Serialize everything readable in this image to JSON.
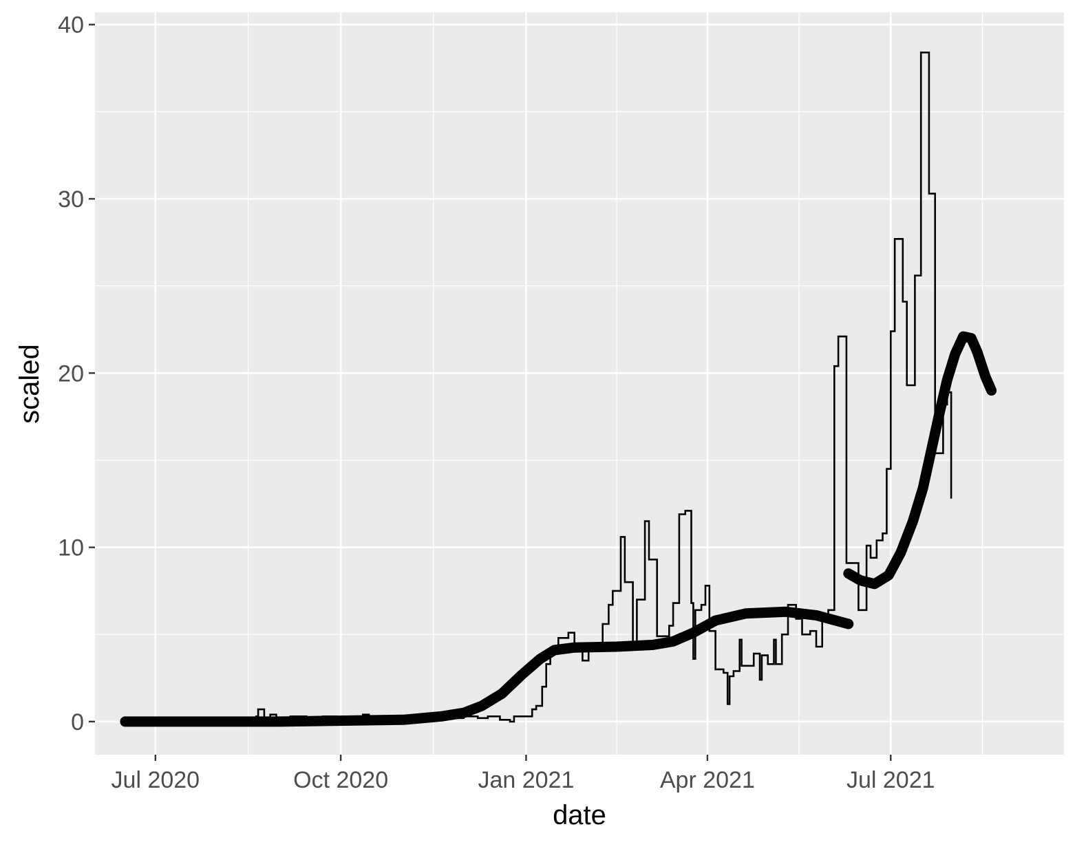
{
  "chart_data": {
    "type": "line",
    "title": "",
    "xlabel": "date",
    "ylabel": "scaled",
    "xlim": [
      "2020-06-01",
      "2021-09-25"
    ],
    "ylim": [
      -1.9,
      40.7
    ],
    "x_ticks": [
      "2020-07-01",
      "2020-10-01",
      "2021-01-01",
      "2021-04-01",
      "2021-07-01"
    ],
    "x_tick_labels": [
      "Jul 2020",
      "Oct 2020",
      "Jan 2021",
      "Apr 2021",
      "Jul 2021"
    ],
    "y_ticks": [
      0,
      10,
      20,
      30,
      40
    ],
    "y_tick_labels": [
      "0",
      "10",
      "20",
      "30",
      "40"
    ],
    "grid": true,
    "background": "#ebebeb",
    "grid_color": "#ffffff",
    "line_color": "#000000",
    "series": [
      {
        "style": "step-line",
        "points": [
          [
            "2020-06-16",
            0
          ],
          [
            "2020-08-15",
            0
          ],
          [
            "2020-08-20",
            0.3
          ],
          [
            "2020-08-21",
            0.7
          ],
          [
            "2020-08-24",
            0.2
          ],
          [
            "2020-08-27",
            0.4
          ],
          [
            "2020-08-30",
            0.1
          ],
          [
            "2020-09-06",
            0.3
          ],
          [
            "2020-09-14",
            0.2
          ],
          [
            "2020-09-22",
            0.3
          ],
          [
            "2020-09-29",
            0.1
          ],
          [
            "2020-10-12",
            0.4
          ],
          [
            "2020-10-15",
            0.1
          ],
          [
            "2020-10-28",
            0.2
          ],
          [
            "2020-11-10",
            0.2
          ],
          [
            "2020-11-18",
            0.5
          ],
          [
            "2020-11-24",
            0.2
          ],
          [
            "2020-12-01",
            0.3
          ],
          [
            "2020-12-08",
            0.2
          ],
          [
            "2020-12-13",
            0.3
          ],
          [
            "2020-12-19",
            0.1
          ],
          [
            "2020-12-24",
            0.0
          ],
          [
            "2020-12-26",
            0.3
          ],
          [
            "2021-01-03",
            0.3
          ],
          [
            "2021-01-04",
            0.7
          ],
          [
            "2021-01-06",
            0.9
          ],
          [
            "2021-01-09",
            2.0
          ],
          [
            "2021-01-11",
            3.3
          ],
          [
            "2021-01-13",
            4.0
          ],
          [
            "2021-01-17",
            4.8
          ],
          [
            "2021-01-22",
            5.1
          ],
          [
            "2021-01-25",
            4.4
          ],
          [
            "2021-01-29",
            3.5
          ],
          [
            "2021-02-01",
            4.3
          ],
          [
            "2021-02-05",
            4.3
          ],
          [
            "2021-02-08",
            5.6
          ],
          [
            "2021-02-11",
            6.7
          ],
          [
            "2021-02-13",
            7.5
          ],
          [
            "2021-02-17",
            10.6
          ],
          [
            "2021-02-19",
            8.0
          ],
          [
            "2021-02-23",
            4.4
          ],
          [
            "2021-02-25",
            7.0
          ],
          [
            "2021-03-01",
            11.5
          ],
          [
            "2021-03-03",
            9.3
          ],
          [
            "2021-03-07",
            4.9
          ],
          [
            "2021-03-13",
            5.5
          ],
          [
            "2021-03-15",
            6.8
          ],
          [
            "2021-03-18",
            11.9
          ],
          [
            "2021-03-21",
            12.1
          ],
          [
            "2021-03-24",
            6.8
          ],
          [
            "2021-03-25",
            3.6
          ],
          [
            "2021-03-26",
            6.4
          ],
          [
            "2021-03-29",
            6.7
          ],
          [
            "2021-03-31",
            7.8
          ],
          [
            "2021-04-02",
            5.2
          ],
          [
            "2021-04-05",
            3.0
          ],
          [
            "2021-04-09",
            2.8
          ],
          [
            "2021-04-11",
            1.0
          ],
          [
            "2021-04-12",
            2.6
          ],
          [
            "2021-04-14",
            2.9
          ],
          [
            "2021-04-17",
            4.7
          ],
          [
            "2021-04-18",
            3.2
          ],
          [
            "2021-04-24",
            3.9
          ],
          [
            "2021-04-27",
            2.4
          ],
          [
            "2021-04-28",
            3.8
          ],
          [
            "2021-05-01",
            3.3
          ],
          [
            "2021-05-04",
            4.7
          ],
          [
            "2021-05-05",
            3.3
          ],
          [
            "2021-05-08",
            5.0
          ],
          [
            "2021-05-11",
            6.7
          ],
          [
            "2021-05-15",
            5.9
          ],
          [
            "2021-05-18",
            5.0
          ],
          [
            "2021-05-22",
            5.2
          ],
          [
            "2021-05-25",
            4.3
          ],
          [
            "2021-05-28",
            5.8
          ],
          [
            "2021-05-31",
            6.4
          ],
          [
            "2021-06-03",
            20.4
          ],
          [
            "2021-06-05",
            22.1
          ],
          [
            "2021-06-09",
            9.1
          ],
          [
            "2021-06-15",
            6.4
          ],
          [
            "2021-06-19",
            10.1
          ],
          [
            "2021-06-21",
            9.4
          ],
          [
            "2021-06-24",
            10.4
          ],
          [
            "2021-06-27",
            10.8
          ],
          [
            "2021-06-29",
            14.5
          ],
          [
            "2021-07-01",
            22.4
          ],
          [
            "2021-07-03",
            27.7
          ],
          [
            "2021-07-07",
            24.1
          ],
          [
            "2021-07-09",
            19.3
          ],
          [
            "2021-07-13",
            25.6
          ],
          [
            "2021-07-16",
            38.4
          ],
          [
            "2021-07-20",
            30.3
          ],
          [
            "2021-07-23",
            15.4
          ],
          [
            "2021-07-27",
            18.2
          ],
          [
            "2021-07-29",
            18.9
          ],
          [
            "2021-07-31",
            12.8
          ]
        ]
      },
      {
        "style": "dotted-smooth",
        "segments": [
          [
            [
              "2020-06-16",
              0.0
            ],
            [
              "2020-09-01",
              0.0
            ],
            [
              "2020-11-01",
              0.1
            ],
            [
              "2020-11-20",
              0.3
            ],
            [
              "2020-12-01",
              0.5
            ],
            [
              "2020-12-10",
              0.9
            ],
            [
              "2020-12-20",
              1.6
            ],
            [
              "2020-12-30",
              2.7
            ],
            [
              "2021-01-08",
              3.6
            ],
            [
              "2021-01-15",
              4.1
            ],
            [
              "2021-01-25",
              4.25
            ],
            [
              "2021-02-15",
              4.3
            ],
            [
              "2021-03-05",
              4.4
            ],
            [
              "2021-03-15",
              4.6
            ],
            [
              "2021-03-25",
              5.1
            ],
            [
              "2021-04-05",
              5.8
            ],
            [
              "2021-04-20",
              6.2
            ],
            [
              "2021-05-10",
              6.3
            ],
            [
              "2021-05-25",
              6.1
            ],
            [
              "2021-06-10",
              5.6
            ]
          ],
          [
            [
              "2021-06-10",
              8.5
            ],
            [
              "2021-06-16",
              8.1
            ],
            [
              "2021-06-23",
              7.9
            ],
            [
              "2021-06-30",
              8.4
            ],
            [
              "2021-07-06",
              9.7
            ],
            [
              "2021-07-12",
              11.5
            ],
            [
              "2021-07-17",
              13.4
            ],
            [
              "2021-07-21",
              15.5
            ],
            [
              "2021-07-25",
              17.6
            ],
            [
              "2021-07-29",
              19.6
            ],
            [
              "2021-08-02",
              21.1
            ],
            [
              "2021-08-06",
              22.1
            ],
            [
              "2021-08-10",
              22.0
            ],
            [
              "2021-08-13",
              21.2
            ],
            [
              "2021-08-17",
              19.8
            ],
            [
              "2021-08-20",
              19.0
            ]
          ]
        ]
      }
    ]
  }
}
